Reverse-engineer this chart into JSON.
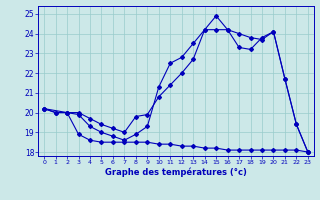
{
  "xlabel": "Graphe des températures (°c)",
  "bg_color": "#cce8e8",
  "line_color": "#0000bb",
  "grid_color": "#99cccc",
  "xlim": [
    -0.5,
    23.5
  ],
  "ylim": [
    17.8,
    25.4
  ],
  "yticks": [
    18,
    19,
    20,
    21,
    22,
    23,
    24,
    25
  ],
  "xticks": [
    0,
    1,
    2,
    3,
    4,
    5,
    6,
    7,
    8,
    9,
    10,
    11,
    12,
    13,
    14,
    15,
    16,
    17,
    18,
    19,
    20,
    21,
    22,
    23
  ],
  "series1_x": [
    0,
    1,
    2,
    3,
    4,
    5,
    6,
    7,
    8,
    9,
    10,
    11,
    12,
    13,
    14,
    15,
    16,
    17,
    18,
    19,
    20,
    21,
    22,
    23
  ],
  "series1_y": [
    20.2,
    20.0,
    20.0,
    18.9,
    18.6,
    18.5,
    18.5,
    18.5,
    18.5,
    18.5,
    18.4,
    18.4,
    18.3,
    18.3,
    18.2,
    18.2,
    18.1,
    18.1,
    18.1,
    18.1,
    18.1,
    18.1,
    18.1,
    18.0
  ],
  "series2_x": [
    0,
    1,
    2,
    3,
    4,
    5,
    6,
    7,
    8,
    9,
    10,
    11,
    12,
    13,
    14,
    15,
    16,
    17,
    18,
    19,
    20,
    21,
    22,
    23
  ],
  "series2_y": [
    20.2,
    20.0,
    20.0,
    20.0,
    19.7,
    19.4,
    19.2,
    19.0,
    19.8,
    19.9,
    20.8,
    21.4,
    22.0,
    22.7,
    24.2,
    24.2,
    24.2,
    23.3,
    23.2,
    23.8,
    24.1,
    21.7,
    19.4,
    18.0
  ],
  "series3_x": [
    0,
    2,
    3,
    4,
    5,
    6,
    7,
    8,
    9,
    10,
    11,
    12,
    13,
    14,
    15,
    16,
    17,
    18,
    19,
    20,
    21,
    22,
    23
  ],
  "series3_y": [
    20.2,
    20.0,
    19.9,
    19.3,
    19.0,
    18.8,
    18.6,
    18.9,
    19.3,
    21.3,
    22.5,
    22.8,
    23.5,
    24.2,
    24.9,
    24.2,
    24.0,
    23.8,
    23.7,
    24.1,
    21.7,
    19.4,
    18.0
  ]
}
